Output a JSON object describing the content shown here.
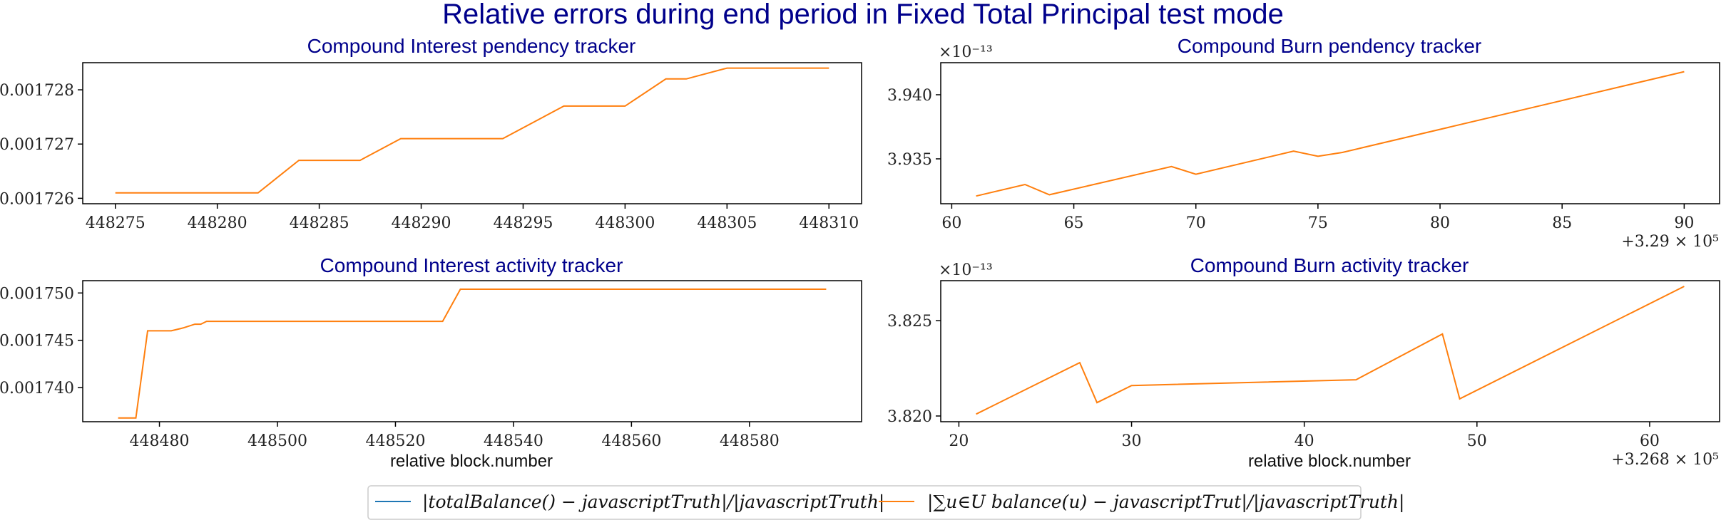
{
  "figure": {
    "suptitle": "Relative errors during end period in Fixed Total Principal test mode"
  },
  "legend": {
    "entries": [
      {
        "label": "|totalBalance() − javascriptTruth|/|javascriptTruth|",
        "color": "#1f77b4"
      },
      {
        "label": "|∑u∈U balance(u) − javascriptTrut|/|javascriptTruth|",
        "color": "#ff7f0e"
      }
    ]
  },
  "colors": {
    "series": "#ff7f0e",
    "title": "#00008b",
    "axis": "#000000"
  },
  "chart_data": [
    {
      "type": "line",
      "title": "Compound Interest pendency tracker",
      "xlabel": "",
      "ylabel": "",
      "xlim": [
        448273.4,
        448311.6
      ],
      "ylim": [
        0.0017259,
        0.0017285
      ],
      "xticks": [
        448275,
        448280,
        448285,
        448290,
        448295,
        448300,
        448305,
        448310
      ],
      "xtick_labels": [
        "448275",
        "448280",
        "448285",
        "448290",
        "448295",
        "448300",
        "448305",
        "448310"
      ],
      "yticks": [
        0.001726,
        0.001727,
        0.001728
      ],
      "ytick_labels": [
        "0.001726",
        "0.001727",
        "0.001728"
      ],
      "x_offset_label": "",
      "y_scale_label": "",
      "series": [
        {
          "x": [
            448275,
            448282,
            448284,
            448287,
            448289,
            448294,
            448297,
            448300,
            448302,
            448303,
            448305,
            448310
          ],
          "values": [
            0.0017261,
            0.0017261,
            0.0017267,
            0.0017267,
            0.0017271,
            0.0017271,
            0.0017277,
            0.0017277,
            0.0017282,
            0.0017282,
            0.0017284,
            0.0017284
          ]
        }
      ]
    },
    {
      "type": "line",
      "title": "Compound Burn pendency tracker",
      "xlabel": "",
      "ylabel": "",
      "xlim": [
        59.55,
        91.45
      ],
      "ylim": [
        3.9315,
        3.9425
      ],
      "xticks": [
        60,
        65,
        70,
        75,
        80,
        85,
        90
      ],
      "xtick_labels": [
        "60",
        "65",
        "70",
        "75",
        "80",
        "85",
        "90"
      ],
      "yticks": [
        3.935,
        3.94
      ],
      "ytick_labels": [
        "3.935",
        "3.940"
      ],
      "x_offset_label": "+3.29 × 10⁵",
      "y_scale_label": "×10⁻¹³",
      "series": [
        {
          "x": [
            61,
            63,
            64,
            69,
            70,
            74,
            75,
            76,
            90
          ],
          "values": [
            3.9321,
            3.933,
            3.9322,
            3.9344,
            3.9338,
            3.9356,
            3.9352,
            3.9355,
            3.9418
          ]
        }
      ]
    },
    {
      "type": "line",
      "title": "Compound Interest activity tracker",
      "xlabel": "relative block.number",
      "ylabel": "",
      "xlim": [
        448467.0,
        448599.0
      ],
      "ylim": [
        0.0017364,
        0.0017513
      ],
      "xticks": [
        448480,
        448500,
        448520,
        448540,
        448560,
        448580
      ],
      "xtick_labels": [
        "448480",
        "448500",
        "448520",
        "448540",
        "448560",
        "448580"
      ],
      "yticks": [
        0.00174,
        0.001745,
        0.00175
      ],
      "ytick_labels": [
        "0.001740",
        "0.001745",
        "0.001750"
      ],
      "x_offset_label": "",
      "y_scale_label": "",
      "series": [
        {
          "x": [
            448473,
            448476,
            448478,
            448482,
            448484,
            448486,
            448487,
            448488,
            448528,
            448531,
            448593
          ],
          "values": [
            0.0017368,
            0.0017368,
            0.001746,
            0.001746,
            0.0017463,
            0.0017467,
            0.0017467,
            0.001747,
            0.001747,
            0.0017504,
            0.0017504
          ]
        }
      ]
    },
    {
      "type": "line",
      "title": "Compound Burn activity tracker",
      "xlabel": "relative block.number",
      "ylabel": "",
      "xlim": [
        18.95,
        64.05
      ],
      "ylim": [
        3.8197,
        3.8271
      ],
      "xticks": [
        20,
        30,
        40,
        50,
        60
      ],
      "xtick_labels": [
        "20",
        "30",
        "40",
        "50",
        "60"
      ],
      "yticks": [
        3.82,
        3.825
      ],
      "ytick_labels": [
        "3.820",
        "3.825"
      ],
      "x_offset_label": "+3.268 × 10⁵",
      "y_scale_label": "×10⁻¹³",
      "series": [
        {
          "x": [
            21,
            27,
            28,
            30,
            43,
            48,
            49,
            62
          ],
          "values": [
            3.8201,
            3.8228,
            3.8207,
            3.8216,
            3.8219,
            3.8243,
            3.8209,
            3.8268
          ]
        }
      ]
    }
  ]
}
